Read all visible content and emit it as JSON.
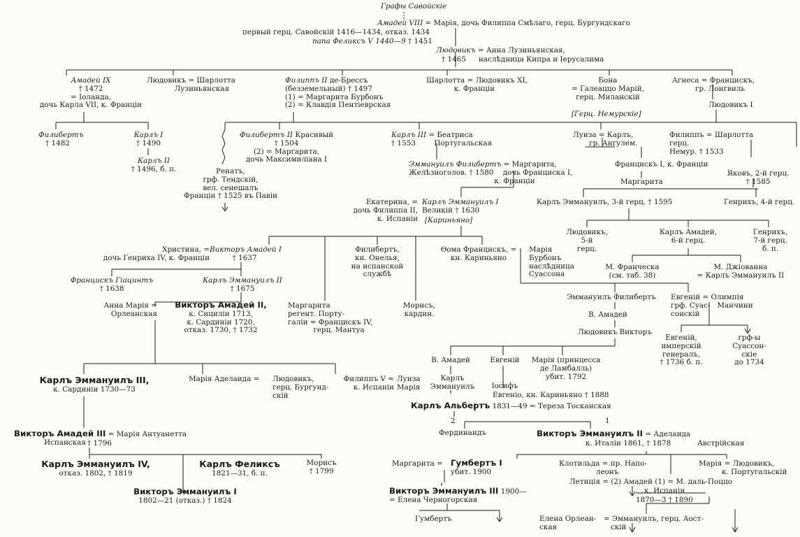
{
  "title": "Графы Савойскіе",
  "people": {
    "amadei8_head": "Амадей VIII",
    "amadei8_wife": "= Марія, дочь Филиппа Смѣлаго, герц. Бургундскаго",
    "amadei8_l2": "первый герц. Савойскій 1416—1434, отказ. 1434",
    "amadei8_pope": "папа Феликсъ V 1440—9",
    "amadei8_death": "† 1451",
    "ludovic_head": "Людовикъ",
    "ludovic_wife": "= Анна Лузиньянская,",
    "ludovic_l2": "наслѣдница Кипра и Іерусалима",
    "ludovic_death": "† 1465",
    "amadei9_name": "Амадей IX",
    "amadei9_rest": "† 1472\n= Іоланда,\nдочь Карла VII, к. Франціи",
    "ludovic2_text": "Людовикъ = Шарлотта\n            Лузиньянская",
    "filipp2_name": "Филиппъ II",
    "filipp2_rest": "де-Брессъ\n(безземельный) † 1497\n(1) = Маргарита Бурбонъ\n(2) = Клавдія Пентіеврская",
    "charlotte_text": "Шарлотта = Людовикъ XI,\n            к. Франціи",
    "bona_text": "Бона\n= Галеаццо Марій,\nгерц. Миланскій",
    "nemours_label": "[Герц. Немурскіе]",
    "agnesa_text": "Агнеса = Францискъ,\n          гр. Лонгвиль",
    "ludovic1_nem": "Людовикъ I",
    "filibert1_name": "Филибертъ",
    "filibert1_rest": "† 1482",
    "karl1_name": "Карлъ I",
    "karl1_rest": "† 1490",
    "karl2_name": "Карлъ II",
    "karl2_rest": "† 1496, б. п.",
    "filibert2_name": "Филибертъ II",
    "filibert2_rest": "Красивый\n† 1504\n(2) = Маргарита,\nдочь Максимиліана I",
    "renat_text": "Ренатъ,\nгрф. Тендскій,\nвел. сенешалъ\nФранціи † 1525 въ Павіи",
    "karl3_name": "Карлъ III",
    "karl3_rest": "= Беатриса\n† 1553        Португальская",
    "luiza_text": "Луиза = Карлъ,\n       гр. Ангулем.",
    "filipp_nem_text": "Филиппъ = Шарлотта\nгерц.\nНемур. † 1533",
    "francisk1_text": "Францискъ I, к. Франціи",
    "margarita_f": "Маргарита",
    "yakov_text": "Яковъ, 2-й герц.\n† 1585",
    "emmanuel_fil_name": "Эммануилъ Филибертъ",
    "emmanuel_fil_rest": "= Маргарита,\nЖелѣзноголов. † 1580    дочь Франциска I,\n                                     к. Франціи",
    "karl_emm_nem": "Карлъ Эммануилъ, 3-й герц. † 1595",
    "genrih4": "Генрихъ, 4-й герц.",
    "ekaterina_text": "Екатерина, =\nдочь Филиппа II,\nк. Испаніи",
    "karl_emm1_name": "Карлъ Эммануилъ I",
    "karl_emm1_rest": "Великій † 1630",
    "karignano_label": "[Кариньяно]",
    "hristina_text": "Христина, =\nдочь Генриха IV, к. Франціи",
    "viktor_am1_name": "Викторъ Амадей I",
    "viktor_am1_rest": "† 1637",
    "filibert_onel": "Филибертъ,\nкн. Онелья,\nна испанской\nслужбѣ",
    "foma_text": "Ѳома Францискъ, =\nкн. Кариньяно",
    "maria_burbon": "Марія\nБурбонъ\nнаслѣдница\nСуассона",
    "ludovic5": "Людовикъ,\n5-й\nгерц.",
    "karl_amadei6": "Карлъ Амадей,\n6-й герц.",
    "genrih7": "Генрихъ,\n7-й герц.\nб. п.",
    "m_francheska": "М. Франческа\n(см. таб. 38)",
    "m_dzhovanna": "М. Джіованна\n= Карлъ Эммануилъ II",
    "francisk_giacint_name": "Францискъ Гіацинтъ",
    "francisk_giacint_rest": "† 1638",
    "karl_emm2_name": "Карлъ Эммануилъ II",
    "karl_emm2_rest": "† 1675",
    "anna_maria": "Анна Марія =\nОрлеанская",
    "viktor_am2_name": "Викторъ Амадей II,",
    "viktor_am2_rest": "к. Сициліи 1713,\nк. Сардиніи 1720,\nотказ. 1730, † 1732",
    "margarita_regent": "Маргарита\nрегент. Порту-\nгаліи = Францискъ IV,\n           герц. Мантуа",
    "moris_kardin": "Морисъ,\nкардин.",
    "emm_filibert_s": "Эммануилъ Филибертъ",
    "v_amadei_s": "В. Амадей",
    "ludovic_viktor": "Людовикъ Викторъ",
    "evgenii_s": "Евгеній = Олимпія\nгрф. Суас-   Манчини\nсонскій",
    "evgenii_imp": "Евгеній,\nимперскій\nгенералъ,\n† 1736 б. п.",
    "grafy_suasson": "грф-ы\nСуассон-\nскіе\nдо 1734",
    "v_amadei_k": "В. Амадей",
    "evgenii_k": "Евгеній",
    "maria_lamballe": "Марія (принцесса\nде Ламбалль)\nубит. 1792",
    "karl_emm_k": "Карлъ\nЭммануилъ",
    "iosif": "Іосифъ",
    "evgenio_k": "Евгеніо, кн. Кариньяно † 1888",
    "karl_emm3_name": "Карлъ Эммануилъ III,",
    "karl_emm3_rest": "к. Сардиніи 1730—73",
    "maria_adelaida": "Марія Аделаида =",
    "ludovic_burg": "Людовикъ,\nгерц. Бургунд-\nскій",
    "filipp5": "Филиппъ V =\nк. Испаніи",
    "luiza_maria": "Луиза\nМарія",
    "karl_albert_name": "Карлъ Альбертъ",
    "karl_albert_rest": "1831—49 = Тереза Тосканская",
    "viktor_am3_name": "Викторъ Амадей III",
    "viktor_am3_rest": "= Марія Антуанетта\n             Испанская",
    "viktor_am3_death": "† 1796",
    "num2": "2",
    "num1": "1",
    "ferdinand": "Фердинандъ",
    "viktor_emm2_name": "Викторъ Эммануилъ II",
    "viktor_emm2_rest": "= Аделаида",
    "viktor_emm2_l2": "к. Италіи 1861, † 1878",
    "viktor_emm2_l2b": "Австрійская",
    "karl_emm4_name": "Карлъ Эммануилъ IV,",
    "karl_emm4_rest": "отказ. 1802, † 1819",
    "karl_feliks_name": "Карлъ Феликсъ",
    "karl_feliks_rest": "1821—31, б. п.",
    "moris_1799": "Морисъ\n† 1799",
    "margarita_h": "Маргарита =",
    "gumbert1_name": "Гумбертъ I",
    "gumbert1_rest": "убит. 1900",
    "klotilda": "Клотильда = пр. Напо-\n                леонъ",
    "maria_ludovic": "Марія = Людовикъ,\n          к. Португальскій",
    "letitsia": "Летиція = (2) Амадей (1) = М. даль-Поццо",
    "amadei_isp": "к. Испаніи",
    "amadei_years": "1870—3 † 1890",
    "viktor_emm1_name": "Викторъ Эммануилъ I",
    "viktor_emm1_rest": "1802—21 (отказ.) † 1824",
    "viktor_emm3_name": "Викторъ Эммануилъ III",
    "viktor_emm3_rest": "1900—",
    "elena_chern": "= Елена Черногорская",
    "gumbert_jr": "Гумбертъ",
    "elena_orl": "Елена Орлеан-\nская",
    "emm_aosta": "= Эммануилъ, герц. Аост-\n   скій"
  }
}
